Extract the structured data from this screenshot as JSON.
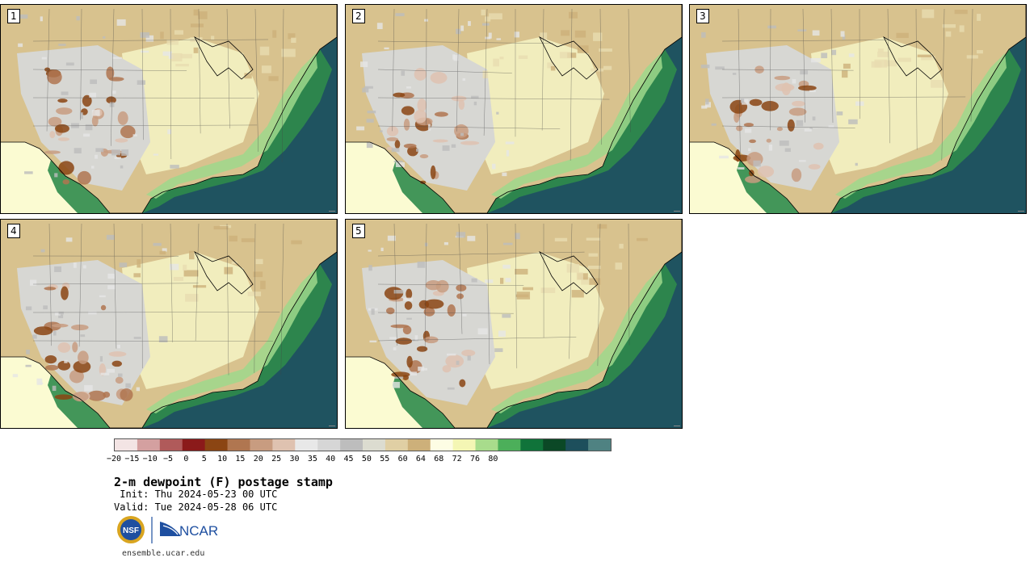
{
  "panels": [
    {
      "label": "1",
      "seed": 11
    },
    {
      "label": "2",
      "seed": 23
    },
    {
      "label": "3",
      "seed": 37
    },
    {
      "label": "4",
      "seed": 41
    },
    {
      "label": "5",
      "seed": 53
    }
  ],
  "colorbar": {
    "colors": [
      "#f3e4e4",
      "#d4a0a0",
      "#b05a5a",
      "#8b1a1a",
      "#8b4513",
      "#b07650",
      "#c89c80",
      "#dfc2b0",
      "#e8e8e8",
      "#d6d6d6",
      "#bdbdbd",
      "#dcdcd0",
      "#e0cfa4",
      "#cdb07a",
      "#fdfde4",
      "#f4f6b4",
      "#a8dc8c",
      "#4caf5a",
      "#10733a",
      "#0b4826",
      "#1d4f5c",
      "#4f8282"
    ],
    "tick_labels": [
      "−20",
      "−15",
      "−10",
      "−5",
      "0",
      "5",
      "10",
      "15",
      "20",
      "25",
      "30",
      "35",
      "40",
      "45",
      "50",
      "55",
      "60",
      "64",
      "68",
      "72",
      "76",
      "80"
    ]
  },
  "legend": {
    "title": "2-m dewpoint (F) postage stamp",
    "init": " Init: Thu 2024-05-23 00 UTC",
    "valid": "Valid: Tue 2024-05-28 06 UTC",
    "url": "ensemble.ucar.edu",
    "logo_nsf": "NSF",
    "logo_ncar": "NCAR"
  }
}
